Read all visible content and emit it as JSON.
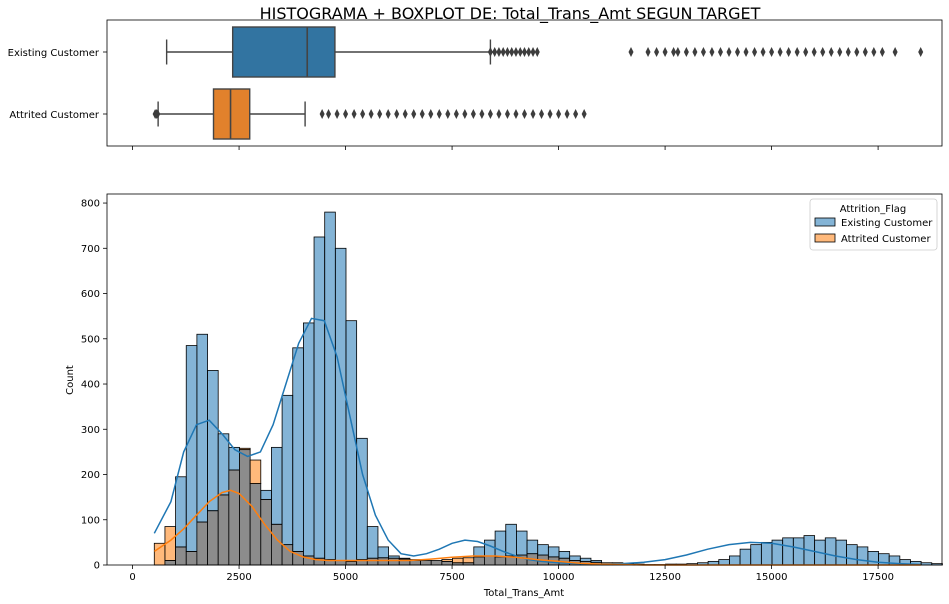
{
  "title": "HISTOGRAMA + BOXPLOT DE: Total_Trans_Amt SEGUN TARGET",
  "colors": {
    "existing": "#1f77b4",
    "attrited": "#ff7f0e",
    "existing_box": "#3274a1",
    "attrited_box": "#e1812c",
    "existing_bar": "#1f77b4",
    "attrited_bar": "#ff7f0e",
    "overlap_bar": "#8c8c8c"
  },
  "chart_data": [
    {
      "type": "boxplot",
      "categories": [
        "Existing Customer",
        "Attrited Customer"
      ],
      "series": [
        {
          "name": "Existing Customer",
          "whisker_low": 800,
          "q1": 2350,
          "median": 4100,
          "q3": 4750,
          "whisker_high": 8400,
          "outliers": [
            8400,
            8500,
            8600,
            8700,
            8800,
            8900,
            9000,
            9100,
            9200,
            9300,
            9400,
            9500,
            11700,
            12100,
            12300,
            12500,
            12700,
            12800,
            13000,
            13200,
            13400,
            13600,
            13800,
            14000,
            14200,
            14400,
            14600,
            14800,
            15000,
            15200,
            15400,
            15600,
            15800,
            16000,
            16200,
            16400,
            16600,
            16800,
            17000,
            17200,
            17400,
            17600,
            17900,
            18500
          ]
        },
        {
          "name": "Attrited Customer",
          "whisker_low": 600,
          "q1": 1900,
          "median": 2300,
          "q3": 2750,
          "whisker_high": 4050,
          "outliers": [
            530,
            560,
            590,
            4450,
            4600,
            4800,
            5000,
            5200,
            5400,
            5600,
            5800,
            6000,
            6200,
            6400,
            6600,
            6800,
            7000,
            7200,
            7400,
            7600,
            7800,
            8000,
            8200,
            8400,
            8600,
            8800,
            9000,
            9200,
            9400,
            9600,
            9800,
            10000,
            10200,
            10400,
            10600
          ]
        }
      ],
      "xlim": [
        -600,
        19000
      ],
      "xticks": [
        0,
        2500,
        5000,
        7500,
        10000,
        12500,
        15000,
        17500
      ]
    },
    {
      "type": "histogram",
      "xlabel": "Total_Trans_Amt",
      "ylabel": "Count",
      "xlim": [
        -600,
        19000
      ],
      "ylim": [
        0,
        820
      ],
      "xticks": [
        0,
        2500,
        5000,
        7500,
        10000,
        12500,
        15000,
        17500
      ],
      "xtick_labels": [
        "0",
        "2500",
        "5000",
        "7500",
        "10000",
        "12500",
        "15000",
        "17500"
      ],
      "yticks": [
        0,
        100,
        200,
        300,
        400,
        500,
        600,
        700,
        800
      ],
      "bin_start": 510,
      "bin_width": 250,
      "legend": {
        "title": "Attrition_Flag",
        "position": "top-right"
      },
      "series": [
        {
          "name": "Existing Customer",
          "values": [
            0,
            10,
            195,
            485,
            510,
            430,
            290,
            260,
            255,
            180,
            165,
            260,
            375,
            480,
            535,
            725,
            780,
            700,
            540,
            280,
            85,
            40,
            20,
            15,
            12,
            10,
            10,
            8,
            5,
            5,
            40,
            55,
            75,
            90,
            75,
            55,
            45,
            40,
            30,
            20,
            15,
            10,
            5,
            5,
            3,
            2,
            1,
            1,
            2,
            2,
            3,
            5,
            8,
            12,
            20,
            35,
            45,
            50,
            55,
            60,
            60,
            65,
            55,
            60,
            55,
            45,
            40,
            30,
            25,
            20,
            12,
            8,
            5,
            3
          ]
        },
        {
          "name": "Attrited Customer",
          "values": [
            48,
            85,
            40,
            30,
            95,
            120,
            155,
            210,
            258,
            232,
            145,
            90,
            45,
            30,
            20,
            15,
            12,
            10,
            8,
            12,
            15,
            16,
            15,
            13,
            10,
            10,
            10,
            12,
            15,
            16,
            18,
            20,
            18,
            20,
            22,
            25,
            22,
            18,
            15,
            10,
            8,
            6,
            5,
            4,
            2,
            2,
            1,
            1,
            1,
            0,
            0,
            0,
            0,
            0,
            0,
            0,
            0,
            0,
            0,
            0,
            0,
            0,
            0,
            0,
            0,
            0,
            0,
            0,
            0,
            0,
            0,
            0,
            0,
            0
          ]
        }
      ],
      "kde": [
        {
          "name": "Existing Customer",
          "points": [
            [
              510,
              70
            ],
            [
              900,
              140
            ],
            [
              1200,
              250
            ],
            [
              1500,
              310
            ],
            [
              1800,
              320
            ],
            [
              2100,
              290
            ],
            [
              2400,
              255
            ],
            [
              2700,
              240
            ],
            [
              3000,
              250
            ],
            [
              3300,
              310
            ],
            [
              3600,
              400
            ],
            [
              3900,
              490
            ],
            [
              4200,
              545
            ],
            [
              4500,
              540
            ],
            [
              4800,
              460
            ],
            [
              5100,
              330
            ],
            [
              5400,
              200
            ],
            [
              5700,
              110
            ],
            [
              6000,
              55
            ],
            [
              6300,
              25
            ],
            [
              6600,
              20
            ],
            [
              6900,
              25
            ],
            [
              7200,
              35
            ],
            [
              7500,
              48
            ],
            [
              7800,
              55
            ],
            [
              8100,
              52
            ],
            [
              8400,
              42
            ],
            [
              8700,
              30
            ],
            [
              9000,
              20
            ],
            [
              9300,
              12
            ],
            [
              9600,
              8
            ],
            [
              10000,
              5
            ],
            [
              10500,
              3
            ],
            [
              11000,
              2
            ],
            [
              11500,
              3
            ],
            [
              12000,
              6
            ],
            [
              12500,
              12
            ],
            [
              13000,
              22
            ],
            [
              13500,
              35
            ],
            [
              14000,
              45
            ],
            [
              14500,
              50
            ],
            [
              15000,
              48
            ],
            [
              15500,
              40
            ],
            [
              16000,
              30
            ],
            [
              16500,
              20
            ],
            [
              17000,
              12
            ],
            [
              17500,
              6
            ],
            [
              18000,
              3
            ],
            [
              18500,
              1
            ]
          ]
        },
        {
          "name": "Attrited Customer",
          "points": [
            [
              510,
              30
            ],
            [
              900,
              55
            ],
            [
              1200,
              80
            ],
            [
              1500,
              110
            ],
            [
              1800,
              140
            ],
            [
              2100,
              160
            ],
            [
              2300,
              165
            ],
            [
              2500,
              158
            ],
            [
              2800,
              130
            ],
            [
              3100,
              90
            ],
            [
              3400,
              55
            ],
            [
              3700,
              30
            ],
            [
              4000,
              18
            ],
            [
              4300,
              12
            ],
            [
              4600,
              10
            ],
            [
              5000,
              10
            ],
            [
              5500,
              10
            ],
            [
              6000,
              10
            ],
            [
              6500,
              10
            ],
            [
              7000,
              13
            ],
            [
              7500,
              17
            ],
            [
              8000,
              20
            ],
            [
              8500,
              20
            ],
            [
              9000,
              17
            ],
            [
              9500,
              12
            ],
            [
              10000,
              8
            ],
            [
              10500,
              4
            ],
            [
              11000,
              2
            ],
            [
              11500,
              1
            ],
            [
              12000,
              0
            ],
            [
              13000,
              0
            ],
            [
              14000,
              0
            ],
            [
              15000,
              0
            ],
            [
              16000,
              0
            ],
            [
              17000,
              0
            ],
            [
              18500,
              0
            ]
          ]
        }
      ]
    }
  ]
}
